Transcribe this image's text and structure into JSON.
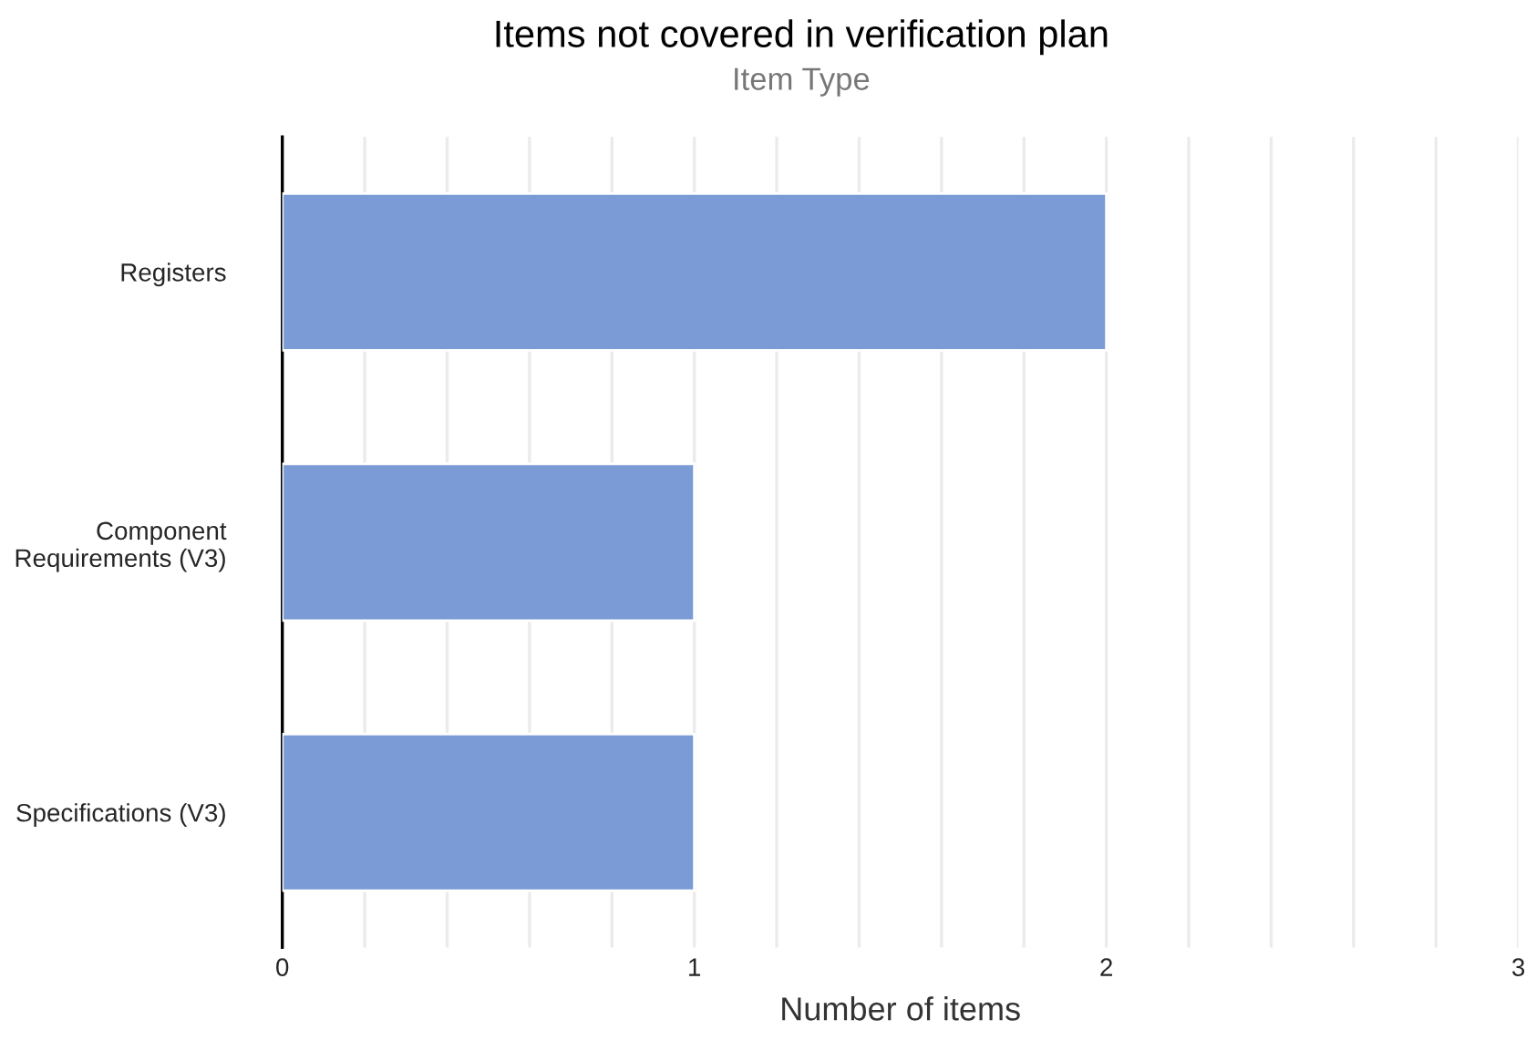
{
  "chart_data": {
    "type": "bar",
    "orientation": "horizontal",
    "title": "Items not covered in verification plan",
    "subtitle": "Item Type",
    "xlabel": "Number of items",
    "categories": [
      "Registers",
      "Component\nRequirements (V3)",
      "Specifications (V3)"
    ],
    "values": [
      2,
      1,
      1
    ],
    "color": "#7b9bd6",
    "xlim": [
      0,
      3
    ],
    "xticks": [
      0,
      {
        "value": 0.2,
        "label": null
      },
      {
        "value": 0.4,
        "label": null
      },
      {
        "value": 0.6,
        "label": null
      },
      {
        "value": 0.8,
        "label": null
      },
      1,
      {
        "value": 1.2,
        "label": null
      },
      {
        "value": 1.4,
        "label": null
      },
      {
        "value": 1.6,
        "label": null
      },
      {
        "value": 1.8,
        "label": null
      },
      2,
      {
        "value": 2.2,
        "label": null
      },
      {
        "value": 2.4,
        "label": null
      },
      {
        "value": 2.6,
        "label": null
      },
      {
        "value": 2.8,
        "label": null
      },
      3
    ],
    "grid": "x",
    "legend": false
  }
}
